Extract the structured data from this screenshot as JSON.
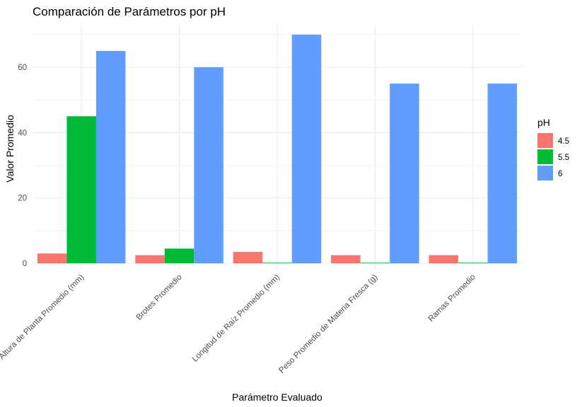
{
  "chart_data": {
    "type": "bar",
    "title": "Comparación de Parámetros por pH",
    "xlabel": "Parámetro Evaluado",
    "ylabel": "Valor Promedio",
    "categories": [
      "Altura de Planta Promedio (mm)",
      "Brotes Promedio",
      "Longitud de Raíz Promedio (mm)",
      "Peso Promedio de Materia Fresca (g)",
      "Ramas Promedio"
    ],
    "series": [
      {
        "name": "4.5",
        "color": "#F8766D",
        "values": [
          3,
          2.5,
          3.5,
          2.5,
          2.5
        ]
      },
      {
        "name": "5.5",
        "color": "#00BA38",
        "values": [
          45,
          4.5,
          0.2,
          0.2,
          0.2
        ]
      },
      {
        "name": "6",
        "color": "#619CFF",
        "values": [
          65,
          60,
          70,
          55,
          55
        ]
      }
    ],
    "ylim": [
      0,
      72
    ],
    "yticks": [
      0,
      20,
      40,
      60
    ],
    "grid": true,
    "legend": {
      "title": "pH",
      "position": "right"
    }
  }
}
